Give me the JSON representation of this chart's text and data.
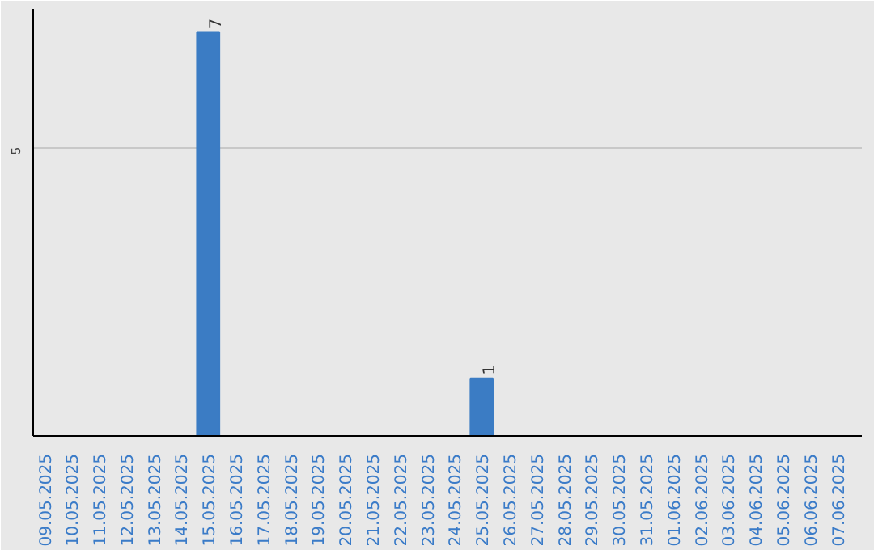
{
  "chart_data": {
    "type": "bar",
    "categories": [
      "09.05.2025",
      "10.05.2025",
      "11.05.2025",
      "12.05.2025",
      "13.05.2025",
      "14.05.2025",
      "15.05.2025",
      "16.05.2025",
      "17.05.2025",
      "18.05.2025",
      "19.05.2025",
      "20.05.2025",
      "21.05.2025",
      "22.05.2025",
      "23.05.2025",
      "24.05.2025",
      "25.05.2025",
      "26.05.2025",
      "27.05.2025",
      "28.05.2025",
      "29.05.2025",
      "30.05.2025",
      "31.05.2025",
      "01.06.2025",
      "02.06.2025",
      "03.06.2025",
      "04.06.2025",
      "05.06.2025",
      "06.06.2025",
      "07.06.2025"
    ],
    "values": [
      0,
      0,
      0,
      0,
      0,
      0,
      7,
      0,
      0,
      0,
      0,
      0,
      0,
      0,
      0,
      0,
      1,
      0,
      0,
      0,
      0,
      0,
      0,
      0,
      0,
      0,
      0,
      0,
      0,
      0
    ],
    "value_labels": [
      null,
      null,
      null,
      null,
      null,
      null,
      "7",
      null,
      null,
      null,
      null,
      null,
      null,
      null,
      null,
      null,
      "1",
      null,
      null,
      null,
      null,
      null,
      null,
      null,
      null,
      null,
      null,
      null,
      null,
      null
    ],
    "color": "#3b7cc4",
    "ylim": [
      0,
      7.4
    ],
    "yticks": [
      5
    ],
    "grid": "y"
  }
}
